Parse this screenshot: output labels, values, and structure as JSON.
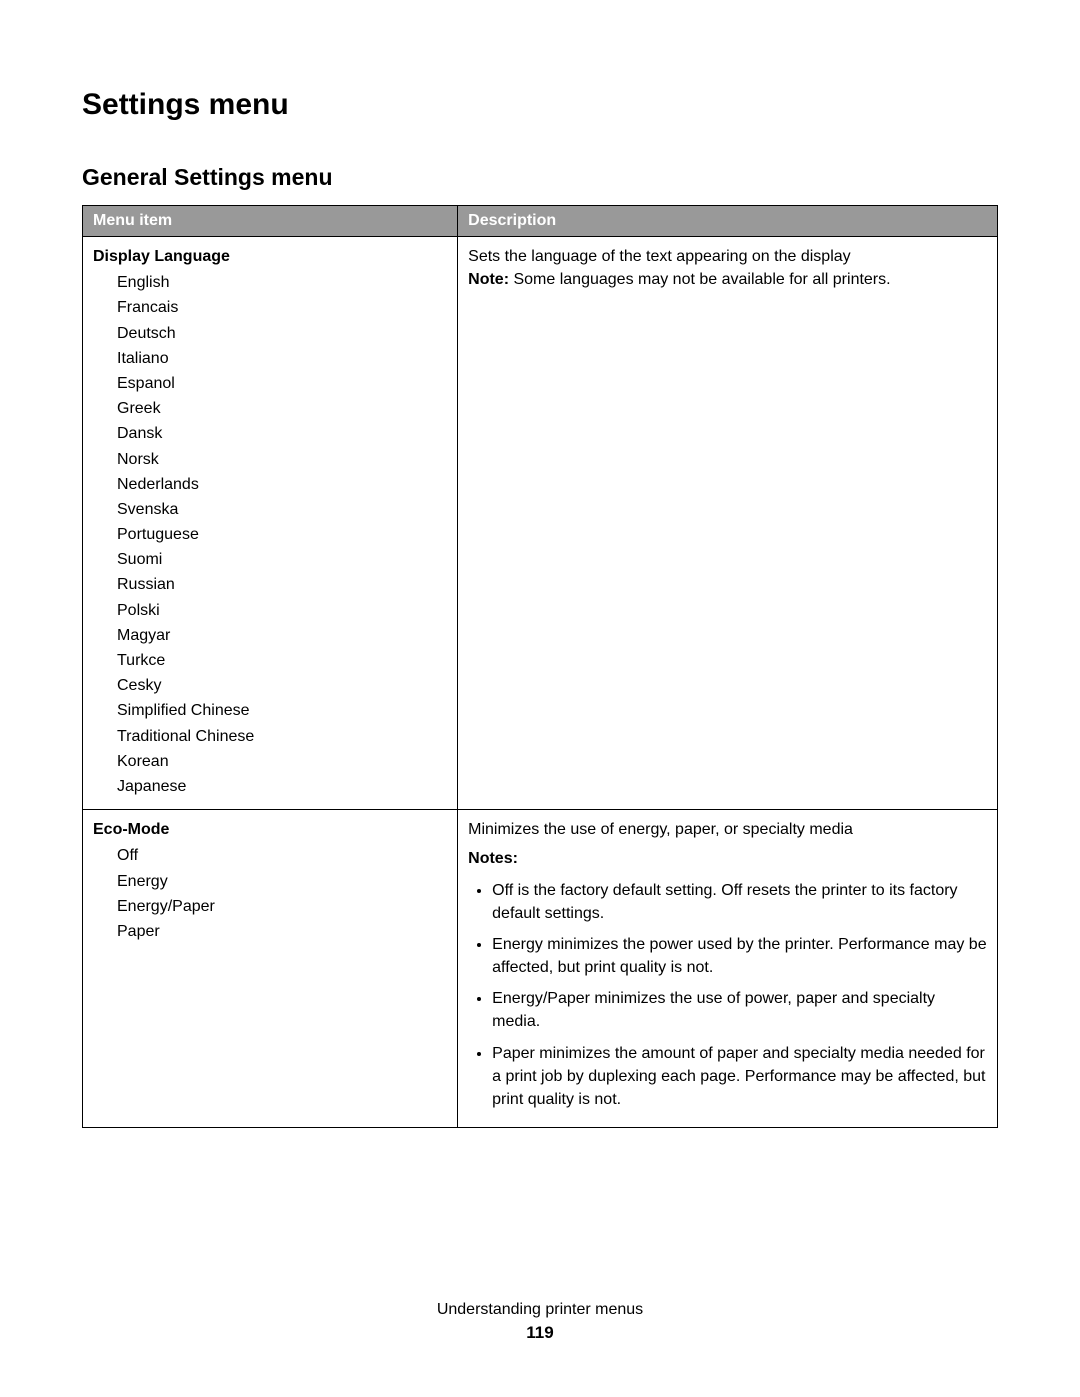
{
  "page": {
    "title": "Settings menu",
    "subtitle": "General Settings menu",
    "footer_text": "Understanding printer menus",
    "page_number": "119"
  },
  "table": {
    "columns": [
      "Menu item",
      "Description"
    ],
    "header_bg": "#999999",
    "header_fg": "#ffffff",
    "border_color": "#000000",
    "col_widths_pct": [
      41,
      59
    ],
    "rows": [
      {
        "menu_title": "Display Language",
        "options": [
          "English",
          "Francais",
          "Deutsch",
          "Italiano",
          "Espanol",
          "Greek",
          "Dansk",
          "Norsk",
          "Nederlands",
          "Svenska",
          "Portuguese",
          "Suomi",
          "Russian",
          "Polski",
          "Magyar",
          "Turkce",
          "Cesky",
          "Simplified Chinese",
          "Traditional Chinese",
          "Korean",
          "Japanese"
        ],
        "description_intro": "Sets the language of the text appearing on the display",
        "note_label": "Note:",
        "note_text": " Some languages may not be available for all printers.",
        "notes_heading": null,
        "notes_list": []
      },
      {
        "menu_title": "Eco-Mode",
        "options": [
          "Off",
          "Energy",
          "Energy/Paper",
          "Paper"
        ],
        "description_intro": "Minimizes the use of energy, paper, or specialty media",
        "note_label": null,
        "note_text": null,
        "notes_heading": "Notes:",
        "notes_list": [
          "Off is the factory default setting. Off resets the printer to its factory default settings.",
          "Energy minimizes the power used by the printer. Performance may be affected, but print quality is not.",
          "Energy/Paper minimizes the use of power, paper and specialty media.",
          "Paper minimizes the amount of paper and specialty media needed for a print job by duplexing each page. Performance may be affected, but print quality is not."
        ]
      }
    ]
  }
}
